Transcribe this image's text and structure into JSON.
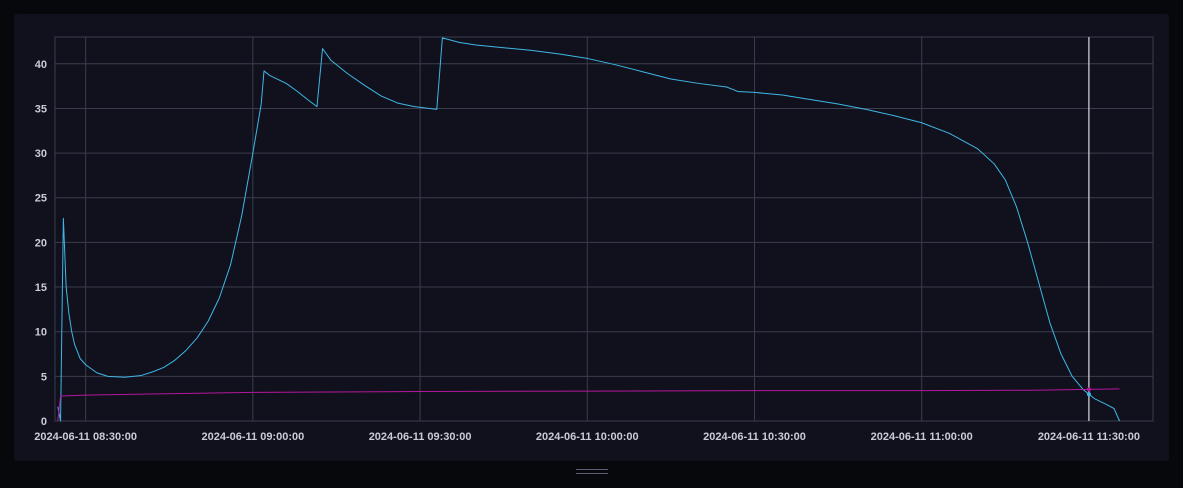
{
  "chart_data": {
    "type": "line",
    "title": "",
    "xlabel": "",
    "ylabel": "",
    "x_axis": {
      "min": "2024-06-11 08:24:30",
      "max": "2024-06-11 11:41:30",
      "tick_labels": [
        "2024-06-11 08:30:00",
        "2024-06-11 09:00:00",
        "2024-06-11 09:30:00",
        "2024-06-11 10:00:00",
        "2024-06-11 10:30:00",
        "2024-06-11 11:00:00",
        "2024-06-11 11:30:00"
      ]
    },
    "y_axis": {
      "min": 0,
      "max": 43,
      "tick_labels": [
        "0",
        "5",
        "10",
        "15",
        "20",
        "25",
        "30",
        "35",
        "40"
      ]
    },
    "grid": true,
    "hover_time": "2024-06-11 11:30:00",
    "series": [
      {
        "color": "#3fb7e6",
        "points": [
          [
            "2024-06-11 08:25:00",
            1.6
          ],
          [
            "2024-06-11 08:25:30",
            0.0
          ],
          [
            "2024-06-11 08:26:00",
            22.7
          ],
          [
            "2024-06-11 08:26:30",
            15.0
          ],
          [
            "2024-06-11 08:27:00",
            12.0
          ],
          [
            "2024-06-11 08:27:30",
            10.0
          ],
          [
            "2024-06-11 08:28:00",
            8.6
          ],
          [
            "2024-06-11 08:29:00",
            7.0
          ],
          [
            "2024-06-11 08:30:00",
            6.3
          ],
          [
            "2024-06-11 08:32:00",
            5.4
          ],
          [
            "2024-06-11 08:34:00",
            5.0
          ],
          [
            "2024-06-11 08:37:00",
            4.9
          ],
          [
            "2024-06-11 08:40:00",
            5.1
          ],
          [
            "2024-06-11 08:42:00",
            5.5
          ],
          [
            "2024-06-11 08:44:00",
            6.0
          ],
          [
            "2024-06-11 08:46:00",
            6.8
          ],
          [
            "2024-06-11 08:48:00",
            7.9
          ],
          [
            "2024-06-11 08:50:00",
            9.3
          ],
          [
            "2024-06-11 08:52:00",
            11.2
          ],
          [
            "2024-06-11 08:54:00",
            13.8
          ],
          [
            "2024-06-11 08:56:00",
            17.5
          ],
          [
            "2024-06-11 08:58:00",
            23.0
          ],
          [
            "2024-06-11 09:00:00",
            30.0
          ],
          [
            "2024-06-11 09:01:30",
            35.5
          ],
          [
            "2024-06-11 09:02:00",
            39.2
          ],
          [
            "2024-06-11 09:03:00",
            38.7
          ],
          [
            "2024-06-11 09:06:00",
            37.8
          ],
          [
            "2024-06-11 09:08:00",
            36.9
          ],
          [
            "2024-06-11 09:10:00",
            35.9
          ],
          [
            "2024-06-11 09:11:30",
            35.2
          ],
          [
            "2024-06-11 09:12:30",
            41.7
          ],
          [
            "2024-06-11 09:14:00",
            40.4
          ],
          [
            "2024-06-11 09:17:00",
            38.9
          ],
          [
            "2024-06-11 09:20:00",
            37.6
          ],
          [
            "2024-06-11 09:23:00",
            36.4
          ],
          [
            "2024-06-11 09:26:00",
            35.6
          ],
          [
            "2024-06-11 09:29:00",
            35.2
          ],
          [
            "2024-06-11 09:33:00",
            34.9
          ],
          [
            "2024-06-11 09:34:00",
            42.9
          ],
          [
            "2024-06-11 09:37:00",
            42.4
          ],
          [
            "2024-06-11 09:40:00",
            42.1
          ],
          [
            "2024-06-11 09:45:00",
            41.8
          ],
          [
            "2024-06-11 09:50:00",
            41.5
          ],
          [
            "2024-06-11 09:55:00",
            41.1
          ],
          [
            "2024-06-11 10:00:00",
            40.6
          ],
          [
            "2024-06-11 10:05:00",
            39.9
          ],
          [
            "2024-06-11 10:10:00",
            39.1
          ],
          [
            "2024-06-11 10:15:00",
            38.3
          ],
          [
            "2024-06-11 10:20:00",
            37.8
          ],
          [
            "2024-06-11 10:25:00",
            37.4
          ],
          [
            "2024-06-11 10:27:00",
            36.9
          ],
          [
            "2024-06-11 10:30:00",
            36.8
          ],
          [
            "2024-06-11 10:35:00",
            36.5
          ],
          [
            "2024-06-11 10:40:00",
            36.0
          ],
          [
            "2024-06-11 10:45:00",
            35.5
          ],
          [
            "2024-06-11 10:50:00",
            34.9
          ],
          [
            "2024-06-11 10:55:00",
            34.2
          ],
          [
            "2024-06-11 11:00:00",
            33.4
          ],
          [
            "2024-06-11 11:05:00",
            32.2
          ],
          [
            "2024-06-11 11:10:00",
            30.5
          ],
          [
            "2024-06-11 11:13:00",
            28.8
          ],
          [
            "2024-06-11 11:15:00",
            27.0
          ],
          [
            "2024-06-11 11:17:00",
            24.0
          ],
          [
            "2024-06-11 11:19:00",
            20.0
          ],
          [
            "2024-06-11 11:21:00",
            15.5
          ],
          [
            "2024-06-11 11:23:00",
            11.0
          ],
          [
            "2024-06-11 11:25:00",
            7.5
          ],
          [
            "2024-06-11 11:27:00",
            5.0
          ],
          [
            "2024-06-11 11:29:00",
            3.5
          ],
          [
            "2024-06-11 11:31:00",
            2.5
          ],
          [
            "2024-06-11 11:33:00",
            1.9
          ],
          [
            "2024-06-11 11:34:30",
            1.4
          ],
          [
            "2024-06-11 11:35:30",
            0.0
          ]
        ]
      },
      {
        "color": "#b5179e",
        "points": [
          [
            "2024-06-11 08:25:00",
            0.0
          ],
          [
            "2024-06-11 08:25:30",
            2.8
          ],
          [
            "2024-06-11 08:30:00",
            2.9
          ],
          [
            "2024-06-11 09:00:00",
            3.2
          ],
          [
            "2024-06-11 09:30:00",
            3.3
          ],
          [
            "2024-06-11 10:00:00",
            3.35
          ],
          [
            "2024-06-11 10:30:00",
            3.4
          ],
          [
            "2024-06-11 11:00:00",
            3.4
          ],
          [
            "2024-06-11 11:20:00",
            3.45
          ],
          [
            "2024-06-11 11:35:30",
            3.6
          ]
        ]
      }
    ]
  }
}
